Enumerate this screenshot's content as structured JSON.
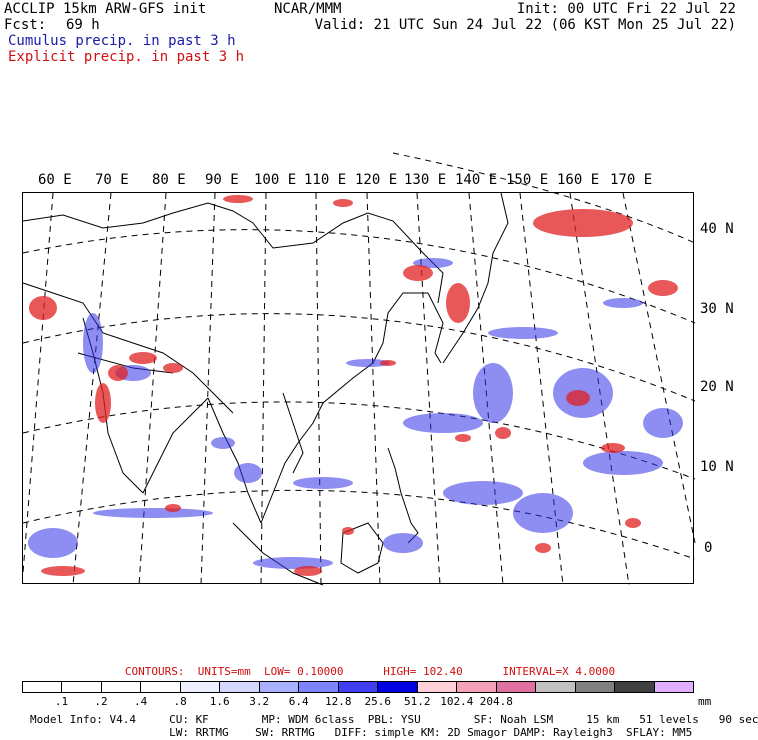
{
  "header": {
    "model": "ACCLIP 15km ARW-GFS init",
    "fcst_label": "Fcst:",
    "fcst_value": "69 h",
    "agency": "NCAR/MMM",
    "init": "Init: 00 UTC Fri 22 Jul 22",
    "valid": "Valid: 21 UTC Sun 24 Jul 22 (06 KST Mon 25 Jul 22)",
    "legend_cumulus": "Cumulus precip. in past 3 h",
    "legend_explicit": "Explicit precip. in past 3 h"
  },
  "map": {
    "longitude_labels": [
      "60 E",
      "70 E",
      "80 E",
      "90 E",
      "100 E",
      "110 E",
      "120 E",
      "130 E",
      "140 E",
      "150 E",
      "160 E",
      "170 E"
    ],
    "latitude_labels": [
      "40 N",
      "30 N",
      "20 N",
      "10 N",
      "0"
    ],
    "colors": {
      "cumulus": "#3030e8",
      "explicit": "#e02020",
      "coast": "#000000"
    }
  },
  "contours": {
    "label": "CONTOURS:",
    "units": "UNITS=mm",
    "low": "LOW= 0.10000",
    "high": "HIGH= 102.40",
    "interval": "INTERVAL=X 4.0000"
  },
  "colorbar": {
    "colors": [
      "#ffffff",
      "#ffffff",
      "#ffffff",
      "#ffffff",
      "#eef0ff",
      "#d4d8ff",
      "#a8b0ff",
      "#7c84ff",
      "#4040f0",
      "#0000e0",
      "#ffd0d8",
      "#f4a0b8",
      "#e070a0",
      "#c0c0c0",
      "#808080",
      "#404040",
      "#e0b0ff"
    ],
    "ticks": [
      ".1",
      ".2",
      ".4",
      ".8",
      "1.6",
      "3.2",
      "6.4",
      "12.8",
      "25.6",
      "51.2",
      "102.4",
      "204.8"
    ],
    "units": "mm"
  },
  "footer": {
    "line1": "Model Info: V4.4     CU: KF        MP: WDM 6class  PBL: YSU        SF: Noah LSM     15 km   51 levels   90 sec",
    "line2": "                     LW: RRTMG    SW: RRTMG   DIFF: simple KM: 2D Smagor DAMP: Rayleigh3  SFLAY: MM5"
  }
}
